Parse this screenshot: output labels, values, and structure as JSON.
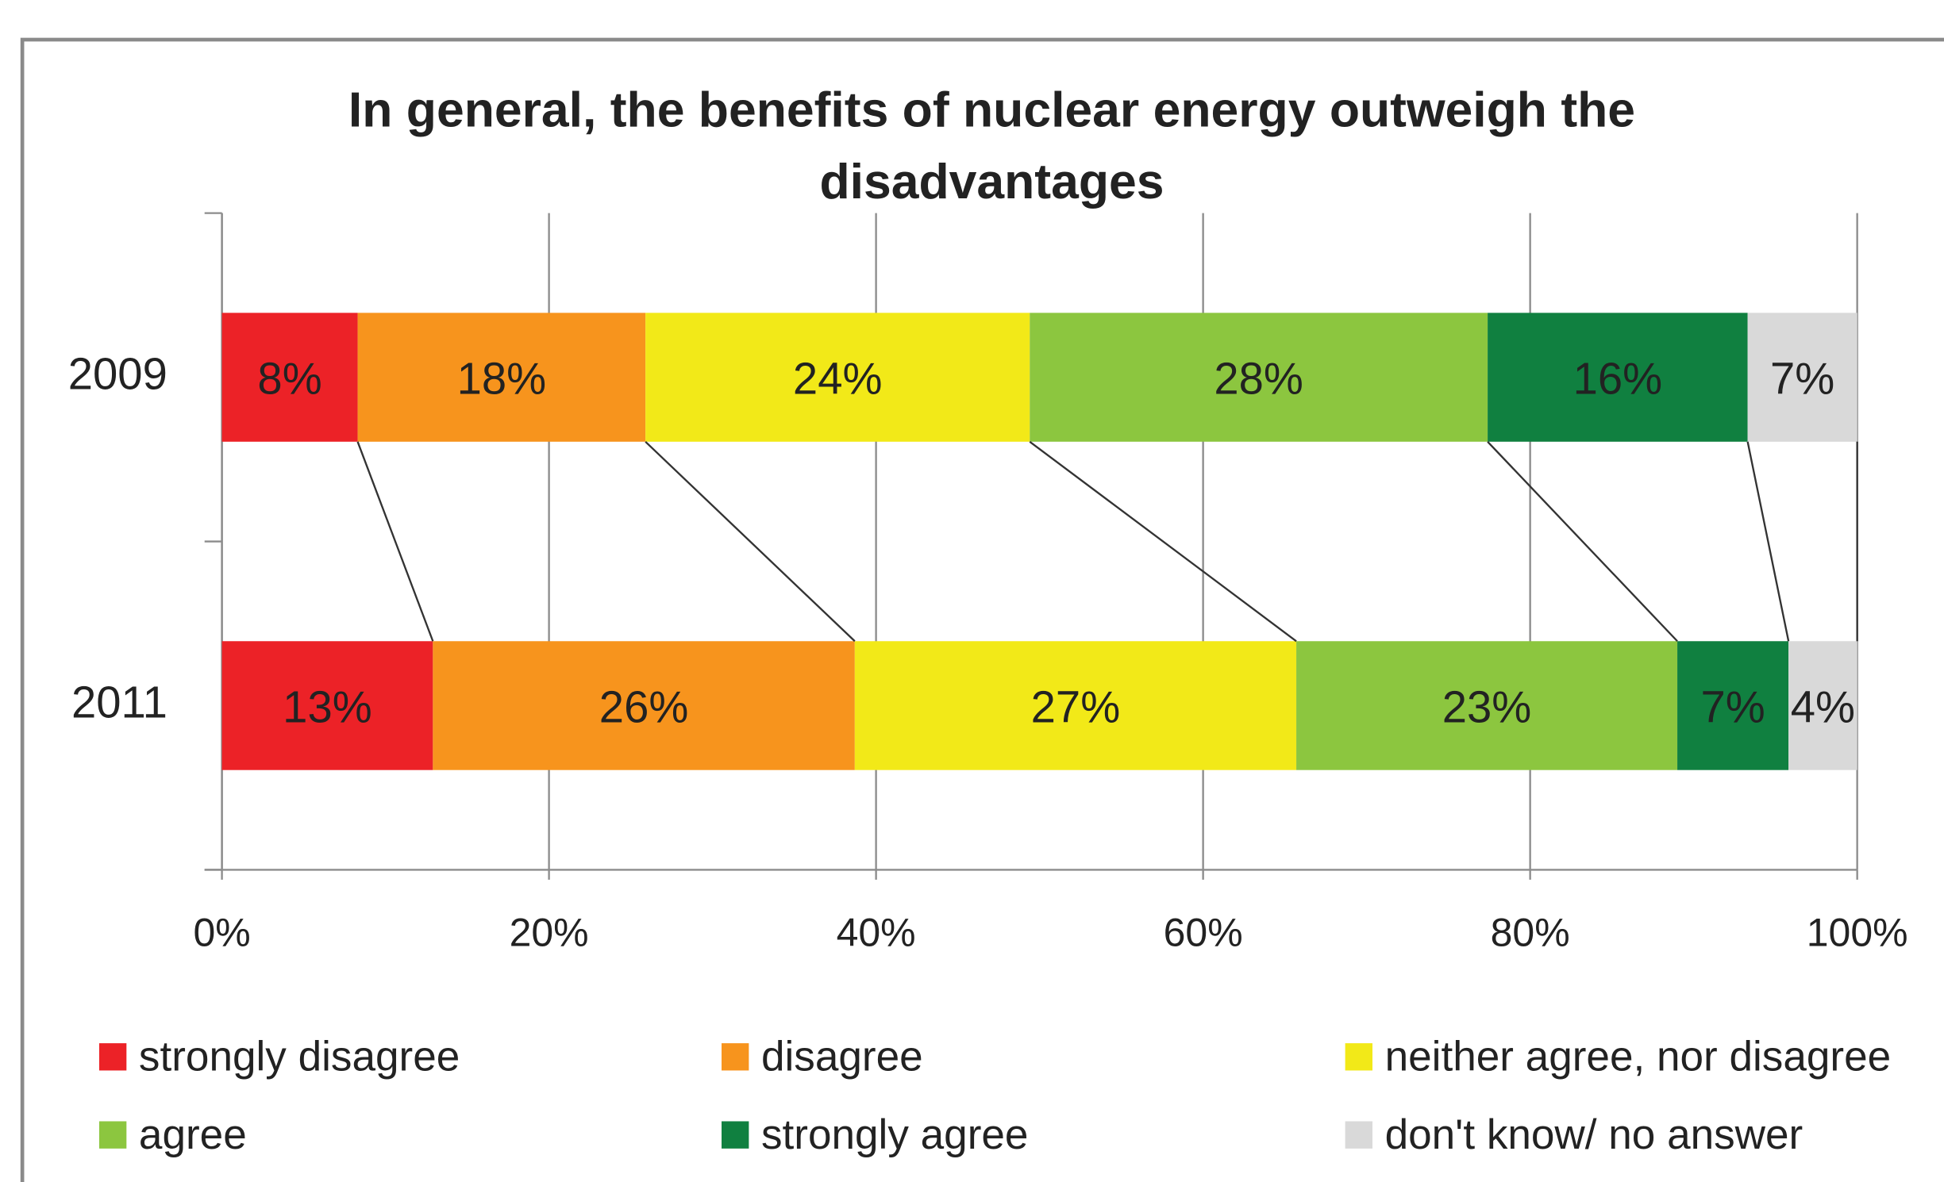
{
  "chart_data": {
    "type": "stacked_bar_horizontal",
    "title": "In general, the benefits of nuclear energy outweigh the disadvantages",
    "categories": [
      "2009",
      "2011"
    ],
    "series": [
      {
        "name": "strongly disagree",
        "color": "#ec2227",
        "label_color": "#222222",
        "values": [
          8.3,
          12.9
        ],
        "value_labels": [
          "8%",
          "13%"
        ]
      },
      {
        "name": "disagree",
        "color": "#f7941d",
        "label_color": "#222222",
        "values": [
          17.6,
          25.8
        ],
        "value_labels": [
          "18%",
          "26%"
        ]
      },
      {
        "name": "neither agree, nor disagree",
        "color": "#f2e918",
        "label_color": "#222222",
        "values": [
          23.5,
          27.0
        ],
        "value_labels": [
          "24%",
          "27%"
        ]
      },
      {
        "name": "agree",
        "color": "#8cc63f",
        "label_color": "#222222",
        "values": [
          28.0,
          23.3
        ],
        "value_labels": [
          "28%",
          "23%"
        ]
      },
      {
        "name": "strongly agree",
        "color": "#108040",
        "label_color": "#f2e918",
        "values": [
          15.9,
          6.8
        ],
        "value_labels": [
          "16%",
          "7%"
        ]
      },
      {
        "name": "don't know/ no answer",
        "color": "#d9d9d9",
        "label_color": "#222222",
        "values": [
          6.7,
          4.2
        ],
        "value_labels": [
          "7%",
          "4%"
        ]
      }
    ],
    "xlim": [
      0,
      100
    ],
    "xticks": [
      {
        "value": 0,
        "label": "0%"
      },
      {
        "value": 20,
        "label": "20%"
      },
      {
        "value": 40,
        "label": "40%"
      },
      {
        "value": 60,
        "label": "60%"
      },
      {
        "value": 80,
        "label": "80%"
      },
      {
        "value": 100,
        "label": "100%"
      }
    ],
    "grid": true,
    "series_lines": true,
    "legend": "bottom"
  }
}
